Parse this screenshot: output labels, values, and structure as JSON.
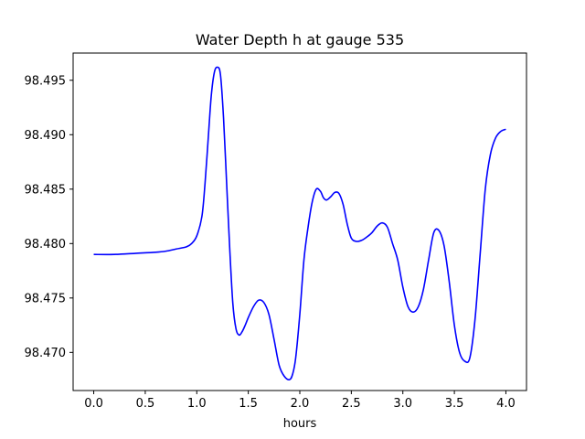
{
  "chart_data": {
    "type": "line",
    "title": "Water Depth h at gauge 535",
    "xlabel": "hours",
    "ylabel": "",
    "xlim": [
      -0.2,
      4.2
    ],
    "ylim": [
      98.4665,
      98.4975
    ],
    "xticks": [
      0.0,
      0.5,
      1.0,
      1.5,
      2.0,
      2.5,
      3.0,
      3.5,
      4.0
    ],
    "xtick_labels": [
      "0.0",
      "0.5",
      "1.0",
      "1.5",
      "2.0",
      "2.5",
      "3.0",
      "3.5",
      "4.0"
    ],
    "yticks": [
      98.47,
      98.475,
      98.48,
      98.485,
      98.49,
      98.495
    ],
    "ytick_labels": [
      "98.470",
      "98.475",
      "98.480",
      "98.485",
      "98.490",
      "98.495"
    ],
    "grid": false,
    "series": [
      {
        "color": "#0000ff",
        "x": [
          0.0,
          0.2,
          0.4,
          0.6,
          0.7,
          0.8,
          0.9,
          0.95,
          1.0,
          1.05,
          1.08,
          1.11,
          1.14,
          1.17,
          1.2,
          1.23,
          1.26,
          1.29,
          1.32,
          1.35,
          1.38,
          1.41,
          1.44,
          1.47,
          1.5,
          1.55,
          1.6,
          1.65,
          1.7,
          1.75,
          1.8,
          1.85,
          1.9,
          1.93,
          1.96,
          2.0,
          2.04,
          2.08,
          2.12,
          2.16,
          2.2,
          2.23,
          2.26,
          2.3,
          2.34,
          2.38,
          2.42,
          2.46,
          2.5,
          2.55,
          2.6,
          2.65,
          2.7,
          2.75,
          2.8,
          2.85,
          2.9,
          2.95,
          3.0,
          3.05,
          3.1,
          3.15,
          3.2,
          3.25,
          3.3,
          3.35,
          3.4,
          3.45,
          3.5,
          3.55,
          3.6,
          3.65,
          3.7,
          3.75,
          3.8,
          3.85,
          3.9,
          3.95,
          4.0
        ],
        "y": [
          98.479,
          98.479,
          98.4791,
          98.4792,
          98.4793,
          98.4795,
          98.4797,
          98.48,
          98.4807,
          98.4825,
          98.4855,
          98.4895,
          98.4935,
          98.4957,
          98.4962,
          98.4955,
          98.4915,
          98.4855,
          98.4795,
          98.4745,
          98.4722,
          98.4716,
          98.4719,
          98.4725,
          98.4732,
          98.4742,
          98.4748,
          98.4746,
          98.4735,
          98.4712,
          98.4688,
          98.4678,
          98.4675,
          98.468,
          98.4695,
          98.4735,
          98.4785,
          98.4815,
          98.4838,
          98.485,
          98.4848,
          98.4842,
          98.484,
          98.4843,
          98.4847,
          98.4846,
          98.4836,
          98.4818,
          98.4805,
          98.4802,
          98.4803,
          98.4806,
          98.481,
          98.4816,
          98.4819,
          98.4815,
          98.48,
          98.4785,
          98.476,
          98.4742,
          98.4737,
          98.4742,
          98.4758,
          98.4785,
          98.481,
          98.4812,
          98.4798,
          98.4765,
          98.4725,
          98.47,
          98.4692,
          98.4695,
          98.473,
          98.479,
          98.485,
          98.4882,
          98.4897,
          98.4903,
          98.4905
        ]
      }
    ]
  }
}
